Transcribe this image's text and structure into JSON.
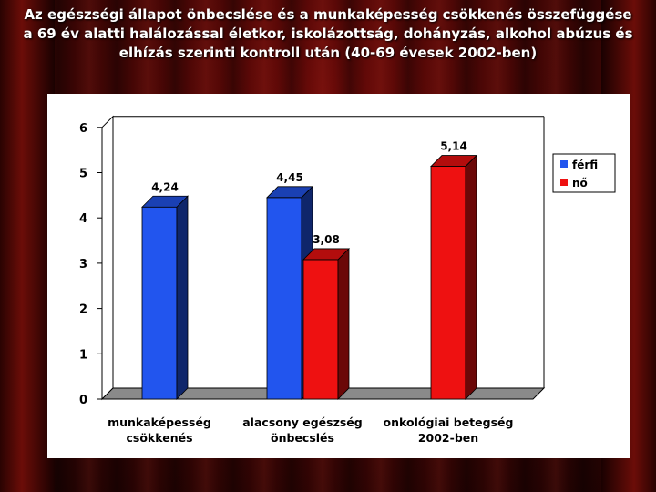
{
  "title": "Az egészségi állapot önbecslése és a munkaképesség csökkenés összefüggése a 69 év alatti halálozással életkor, iskolázottság, dohányzás, alkohol abúzus és elhízás szerinti kontroll után (40-69 évesek 2002-ben)",
  "colors": {
    "ferfi": "#2255ee",
    "no": "#ee1111",
    "background": "#3a0504"
  },
  "chart_data": {
    "type": "bar",
    "title": "Az egészségi állapot önbecslése és a munkaképesség csökkenés összefüggése a 69 év alatti halálozással életkor, iskolázottság, dohányzás, alkohol abúzus és elhízás szerinti kontroll után (40-69 évesek 2002-ben)",
    "categories": [
      [
        "munkaképesség",
        "csökkenés"
      ],
      [
        "alacsony egészség",
        "önbecslés"
      ],
      [
        "onkológiai betegség",
        "2002-ben"
      ]
    ],
    "series": [
      {
        "name": "férfi",
        "values": [
          4.24,
          4.45,
          null
        ],
        "labels": [
          "4,24",
          "4,45",
          ""
        ]
      },
      {
        "name": "nő",
        "values": [
          null,
          3.08,
          5.14
        ],
        "labels": [
          "",
          "3,08",
          "5,14"
        ]
      }
    ],
    "yticks": [
      "0",
      "1",
      "2",
      "3",
      "4",
      "5",
      "6"
    ],
    "ylim": [
      0,
      6
    ],
    "xlabel": "",
    "ylabel": "",
    "grid": false,
    "legend": "right"
  }
}
